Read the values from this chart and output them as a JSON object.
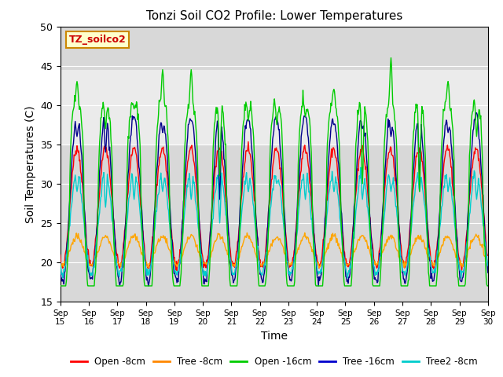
{
  "title": "Tonzi Soil CO2 Profile: Lower Temperatures",
  "xlabel": "Time",
  "ylabel": "Soil Temperatures (C)",
  "ylim": [
    15,
    50
  ],
  "yticks": [
    15,
    20,
    25,
    30,
    35,
    40,
    45,
    50
  ],
  "xlim": [
    0,
    15
  ],
  "xtick_labels": [
    "Sep 15",
    "Sep 16",
    "Sep 17",
    "Sep 18",
    "Sep 19",
    "Sep 20",
    "Sep 21",
    "Sep 22",
    "Sep 23",
    "Sep 24",
    "Sep 25",
    "Sep 26",
    "Sep 27",
    "Sep 28",
    "Sep 29",
    "Sep 30"
  ],
  "legend_entries": [
    "Open -8cm",
    "Tree -8cm",
    "Open -16cm",
    "Tree -16cm",
    "Tree2 -8cm"
  ],
  "legend_colors": [
    "#ff0000",
    "#ff8800",
    "#00cc00",
    "#0000cc",
    "#00cccc"
  ],
  "watermark_text": "TZ_soilco2",
  "watermark_bg": "#ffffcc",
  "watermark_border": "#cc8800",
  "watermark_text_color": "#cc0000",
  "plot_bg_color": "#d8d8d8",
  "shaded_ymin": 35.0,
  "shaded_ymax": 44.5,
  "shaded_color": "#ebebeb",
  "line_colors": {
    "open8": "#ff0000",
    "tree8": "#ffa500",
    "open16": "#00cc00",
    "tree16": "#00008b",
    "tree28": "#00cccc"
  }
}
